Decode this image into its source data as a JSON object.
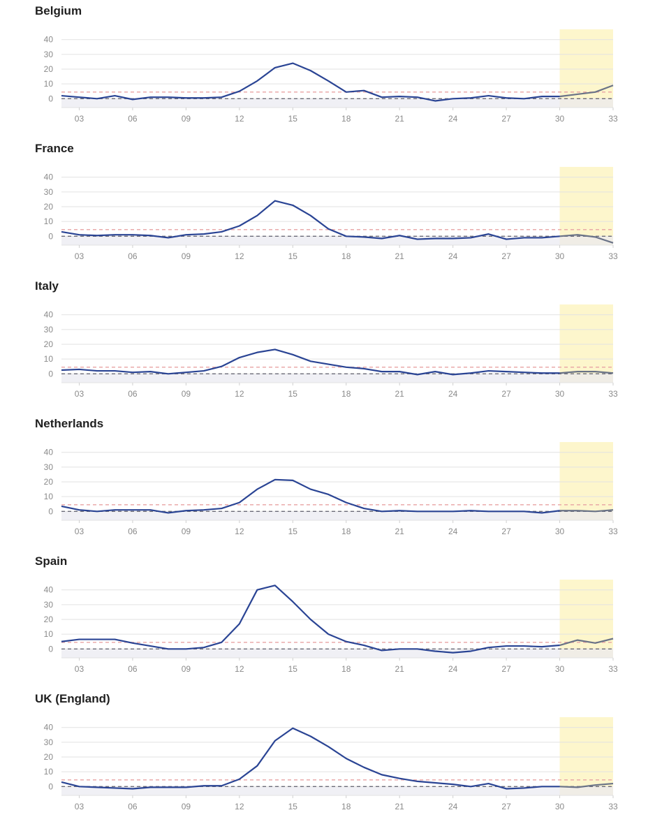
{
  "colors": {
    "series": "#2a4494",
    "forecast": "#6a7387",
    "upper_threshold": "#e8a3a3",
    "baseline": "#6b6b78",
    "forecast_band": "#fdf6cc",
    "grid": "#e2e2e2",
    "baseline_band": "#e9e9f1"
  },
  "chart_data": [
    {
      "type": "line",
      "title": "Belgium",
      "ylim": [
        -6,
        46
      ],
      "yticks": [
        "0",
        "10",
        "20",
        "30",
        "40"
      ],
      "xticks": [
        "03",
        "06",
        "09",
        "12",
        "15",
        "18",
        "21",
        "24",
        "27",
        "30",
        "33"
      ],
      "x": [
        2,
        3,
        4,
        5,
        6,
        7,
        8,
        9,
        10,
        11,
        12,
        13,
        14,
        15,
        16,
        17,
        18,
        19,
        20,
        21,
        22,
        23,
        24,
        25,
        26,
        27,
        28,
        29,
        30
      ],
      "values": [
        2,
        1,
        0,
        2,
        -0.5,
        1,
        1,
        0.5,
        0.5,
        1,
        5,
        12,
        21,
        24,
        19,
        12,
        4.5,
        5.5,
        1,
        1.5,
        1,
        -1.5,
        0,
        0.5,
        2,
        0.5,
        0,
        1.5,
        1.5
      ],
      "forecast_x": [
        30,
        31,
        32,
        33
      ],
      "forecast_values": [
        1.5,
        3,
        4.5,
        9
      ],
      "forecast_region": [
        30,
        33
      ],
      "upper_threshold": 4.5,
      "baseline": 0
    },
    {
      "type": "line",
      "title": "France",
      "ylim": [
        -6,
        46
      ],
      "yticks": [
        "0",
        "10",
        "20",
        "30",
        "40"
      ],
      "xticks": [
        "03",
        "06",
        "09",
        "12",
        "15",
        "18",
        "21",
        "24",
        "27",
        "30",
        "33"
      ],
      "x": [
        2,
        3,
        4,
        5,
        6,
        7,
        8,
        9,
        10,
        11,
        12,
        13,
        14,
        15,
        16,
        17,
        18,
        19,
        20,
        21,
        22,
        23,
        24,
        25,
        26,
        27,
        28,
        29,
        30
      ],
      "values": [
        3,
        1,
        0.5,
        1,
        1,
        0.5,
        -1,
        1,
        1.5,
        3,
        7,
        14,
        24,
        21,
        14,
        5,
        0,
        -0.5,
        -1.5,
        0.5,
        -2,
        -1.5,
        -1.5,
        -1,
        1.5,
        -2,
        -1,
        -1,
        0
      ],
      "forecast_x": [
        30,
        31,
        32,
        33
      ],
      "forecast_values": [
        0,
        1,
        -0.5,
        -4.5
      ],
      "forecast_region": [
        30,
        33
      ],
      "upper_threshold": 4.5,
      "baseline": 0
    },
    {
      "type": "line",
      "title": "Italy",
      "ylim": [
        -6,
        46
      ],
      "yticks": [
        "0",
        "10",
        "20",
        "30",
        "40"
      ],
      "xticks": [
        "03",
        "06",
        "09",
        "12",
        "15",
        "18",
        "21",
        "24",
        "27",
        "30",
        "33"
      ],
      "x": [
        2,
        3,
        4,
        5,
        6,
        7,
        8,
        9,
        10,
        11,
        12,
        13,
        14,
        15,
        16,
        17,
        18,
        19,
        20,
        21,
        22,
        23,
        24,
        25,
        26,
        27,
        28,
        29,
        30
      ],
      "values": [
        2.5,
        3,
        2,
        2,
        1,
        1.5,
        0,
        1,
        2,
        5,
        11,
        14.5,
        16.5,
        13,
        8.5,
        6.5,
        4.5,
        3.5,
        1.5,
        1.5,
        -0.5,
        1.5,
        -0.5,
        0.5,
        2,
        1.5,
        1,
        0.5,
        0.5
      ],
      "forecast_x": [
        30,
        31,
        32,
        33
      ],
      "forecast_values": [
        0.5,
        1.5,
        1.5,
        0.5
      ],
      "forecast_region": [
        30,
        33
      ],
      "upper_threshold": 4.5,
      "baseline": 0
    },
    {
      "type": "line",
      "title": "Netherlands",
      "ylim": [
        -6,
        46
      ],
      "yticks": [
        "0",
        "10",
        "20",
        "30",
        "40"
      ],
      "xticks": [
        "03",
        "06",
        "09",
        "12",
        "15",
        "18",
        "21",
        "24",
        "27",
        "30",
        "33"
      ],
      "x": [
        2,
        3,
        4,
        5,
        6,
        7,
        8,
        9,
        10,
        11,
        12,
        13,
        14,
        15,
        16,
        17,
        18,
        19,
        20,
        21,
        22,
        23,
        24,
        25,
        26,
        27,
        28,
        29,
        30
      ],
      "values": [
        3.5,
        1,
        0,
        1,
        1,
        1,
        -1,
        0.5,
        1,
        2,
        6,
        15,
        21.5,
        21,
        15,
        11.5,
        6,
        2,
        0,
        0.5,
        0,
        0,
        0,
        0.5,
        0,
        0,
        0,
        -1,
        0.5
      ],
      "forecast_x": [
        30,
        31,
        32,
        33
      ],
      "forecast_values": [
        0.5,
        0.5,
        0,
        1
      ],
      "forecast_region": [
        30,
        33
      ],
      "upper_threshold": 4.5,
      "baseline": 0
    },
    {
      "type": "line",
      "title": "Spain",
      "ylim": [
        -6,
        46
      ],
      "yticks": [
        "0",
        "10",
        "20",
        "30",
        "40"
      ],
      "xticks": [
        "03",
        "06",
        "09",
        "12",
        "15",
        "18",
        "21",
        "24",
        "27",
        "30",
        "33"
      ],
      "x": [
        2,
        3,
        4,
        5,
        6,
        7,
        8,
        9,
        10,
        11,
        12,
        13,
        14,
        15,
        16,
        17,
        18,
        19,
        20,
        21,
        22,
        23,
        24,
        25,
        26,
        27,
        28,
        29,
        30
      ],
      "values": [
        5,
        6.5,
        6.5,
        6.5,
        4,
        2,
        0,
        0,
        1,
        4.5,
        17,
        40,
        43,
        32,
        20,
        10,
        5,
        2.5,
        -1,
        0,
        0,
        -1.5,
        -2.5,
        -1.5,
        1,
        2,
        2,
        1.5,
        2.5
      ],
      "forecast_x": [
        30,
        31,
        32,
        33
      ],
      "forecast_values": [
        2.5,
        6,
        4,
        7
      ],
      "forecast_region": [
        30,
        33
      ],
      "upper_threshold": 4.5,
      "baseline": 0
    },
    {
      "type": "line",
      "title": "UK (England)",
      "ylim": [
        -6,
        46
      ],
      "yticks": [
        "0",
        "10",
        "20",
        "30",
        "40"
      ],
      "xticks": [
        "03",
        "06",
        "09",
        "12",
        "15",
        "18",
        "21",
        "24",
        "27",
        "30",
        "33"
      ],
      "x": [
        2,
        3,
        4,
        5,
        6,
        7,
        8,
        9,
        10,
        11,
        12,
        13,
        14,
        15,
        16,
        17,
        18,
        19,
        20,
        21,
        22,
        23,
        24,
        25,
        26,
        27,
        28,
        29,
        30
      ],
      "values": [
        3,
        0,
        -0.5,
        -1,
        -1.5,
        -0.5,
        -0.5,
        -0.5,
        0.5,
        0.5,
        5,
        14,
        31,
        39.5,
        34,
        27,
        19,
        13,
        8,
        5.5,
        3.5,
        2.5,
        1.5,
        0,
        2,
        -1.5,
        -1,
        0,
        0
      ],
      "forecast_x": [
        30,
        31,
        32,
        33
      ],
      "forecast_values": [
        0,
        -0.5,
        1,
        2
      ],
      "forecast_region": [
        30,
        33
      ],
      "upper_threshold": 4.5,
      "baseline": 0
    }
  ]
}
